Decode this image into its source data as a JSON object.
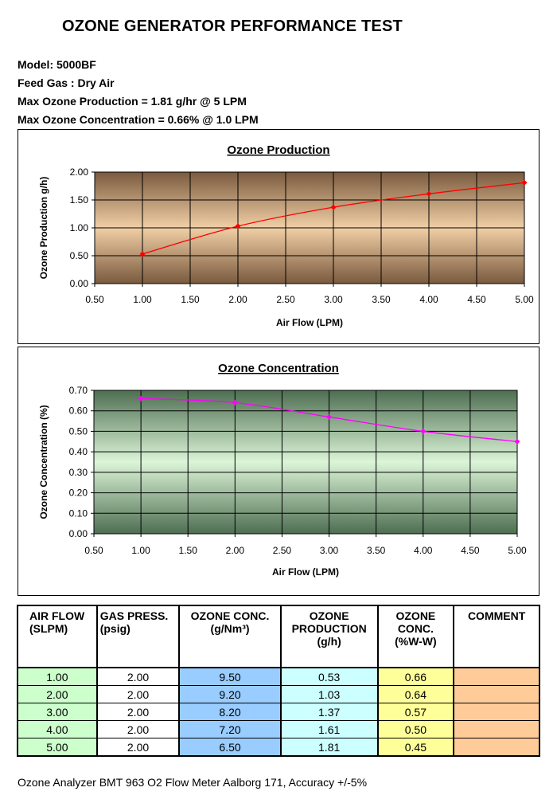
{
  "header": {
    "title": "OZONE GENERATOR PERFORMANCE TEST",
    "model": "Model: 5000BF",
    "feed_gas": "Feed Gas :  Dry Air",
    "max_production": "Max Ozone Production = 1.81 g/hr @ 5 LPM",
    "max_concentration": "Max Ozone Concentration = 0.66% @ 1.0 LPM"
  },
  "chart_data": [
    {
      "type": "line",
      "title": "Ozone Production",
      "xlabel": "Air Flow (LPM)",
      "ylabel": "Ozone Production g/h)",
      "xlim": [
        0.5,
        5.0
      ],
      "ylim": [
        0.0,
        2.0
      ],
      "x_ticks": [
        "0.50",
        "1.00",
        "1.50",
        "2.00",
        "2.50",
        "3.00",
        "3.50",
        "4.00",
        "4.50",
        "5.00"
      ],
      "y_ticks": [
        "0.00",
        "0.50",
        "1.00",
        "1.50",
        "2.00"
      ],
      "grid": true,
      "series": [
        {
          "color": "#ff0000",
          "x": [
            1.0,
            2.0,
            3.0,
            4.0,
            5.0
          ],
          "y": [
            0.53,
            1.03,
            1.37,
            1.61,
            1.81
          ]
        }
      ]
    },
    {
      "type": "line",
      "title": "Ozone Concentration",
      "xlabel": "Air Flow (LPM)",
      "ylabel": "Ozone Concentration (%)",
      "xlim": [
        0.5,
        5.0
      ],
      "ylim": [
        0.0,
        0.7
      ],
      "x_ticks": [
        "0.50",
        "1.00",
        "1.50",
        "2.00",
        "2.50",
        "3.00",
        "3.50",
        "4.00",
        "4.50",
        "5.00"
      ],
      "y_ticks": [
        "0.00",
        "0.10",
        "0.20",
        "0.30",
        "0.40",
        "0.50",
        "0.60",
        "0.70"
      ],
      "grid": true,
      "series": [
        {
          "color": "#ff00ff",
          "x": [
            1.0,
            2.0,
            3.0,
            4.0,
            5.0
          ],
          "y": [
            0.66,
            0.64,
            0.57,
            0.5,
            0.45
          ]
        }
      ]
    }
  ],
  "table": {
    "headers": {
      "air_flow_1": "AIR FLOW",
      "air_flow_2": "(SLPM)",
      "gas_press_1": "GAS PRESS.",
      "gas_press_2": "(psig)",
      "ozone_conc_1": "OZONE CONC.",
      "ozone_conc_2": "(g/Nm³)",
      "ozone_prod_1": "OZONE",
      "ozone_prod_2": "PRODUCTION",
      "ozone_prod_3": "(g/h)",
      "ozone_pct_1": "OZONE",
      "ozone_pct_2": "CONC.",
      "ozone_pct_3": "(%W-W)",
      "comment": "COMMENT"
    },
    "rows": [
      {
        "air_flow": "1.00",
        "gas_press": "2.00",
        "ozone_conc": "9.50",
        "production": "0.53",
        "conc_pct": "0.66",
        "comment": ""
      },
      {
        "air_flow": "2.00",
        "gas_press": "2.00",
        "ozone_conc": "9.20",
        "production": "1.03",
        "conc_pct": "0.64",
        "comment": ""
      },
      {
        "air_flow": "3.00",
        "gas_press": "2.00",
        "ozone_conc": "8.20",
        "production": "1.37",
        "conc_pct": "0.57",
        "comment": ""
      },
      {
        "air_flow": "4.00",
        "gas_press": "2.00",
        "ozone_conc": "7.20",
        "production": "1.61",
        "conc_pct": "0.50",
        "comment": ""
      },
      {
        "air_flow": "5.00",
        "gas_press": "2.00",
        "ozone_conc": "6.50",
        "production": "1.81",
        "conc_pct": "0.45",
        "comment": ""
      }
    ]
  },
  "footer": "Ozone Analyzer BMT 963 O2 Flow Meter Aalborg 171, Accuracy +/-5%"
}
